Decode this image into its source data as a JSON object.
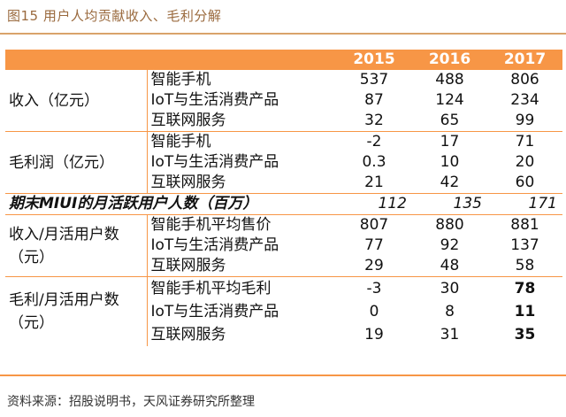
{
  "title": "图15 用户人均贡献收入、毛利分解",
  "headers": [
    "",
    "",
    "2015",
    "2016",
    "2017"
  ],
  "sections": [
    {
      "category": "收入（亿元）",
      "rows": [
        {
          "label": "智能手机",
          "values": [
            "537",
            "488",
            "806"
          ]
        },
        {
          "label": "IoT与生活消费产品",
          "values": [
            "87",
            "124",
            "234"
          ]
        },
        {
          "label": "互联网服务",
          "values": [
            "32",
            "65",
            "99"
          ]
        }
      ]
    },
    {
      "category": "毛利润（亿元）",
      "rows": [
        {
          "label": "智能手机",
          "values": [
            "-2",
            "17",
            "71"
          ]
        },
        {
          "label": "IoT与生活消费产品",
          "values": [
            "0.3",
            "10",
            "20"
          ]
        },
        {
          "label": "互联网服务",
          "values": [
            "21",
            "42",
            "60"
          ]
        }
      ]
    }
  ],
  "mau_row": {
    "label": "期末MIUI的月活跃用户人数（百万）",
    "values": [
      "112",
      "135",
      "171"
    ]
  },
  "per_user_sections": [
    {
      "category_line1": "收入/月活用户数",
      "category_line2": "（元）",
      "rows": [
        {
          "label": "智能手机平均售价",
          "values": [
            "807",
            "880",
            "881"
          ]
        },
        {
          "label": "IoT与生活消费产品",
          "values": [
            "77",
            "92",
            "137"
          ]
        },
        {
          "label": "互联网服务",
          "values": [
            "29",
            "48",
            "58"
          ]
        }
      ]
    },
    {
      "category_line1": "毛利/月活用户数",
      "category_line2": "（元）",
      "rows": [
        {
          "label": "智能手机平均毛利",
          "values": [
            "-3",
            "30",
            "78"
          ]
        },
        {
          "label": "IoT与生活消费产品",
          "values": [
            "0",
            "8",
            "11"
          ]
        },
        {
          "label": "互联网服务",
          "values": [
            "19",
            "31",
            "35"
          ]
        }
      ]
    }
  ],
  "source": "资料来源：招股说明书，天风证券研究所整理",
  "colors": {
    "header_bg": "#f79646",
    "title": "#9a6a3e",
    "rule": "#f79646"
  }
}
